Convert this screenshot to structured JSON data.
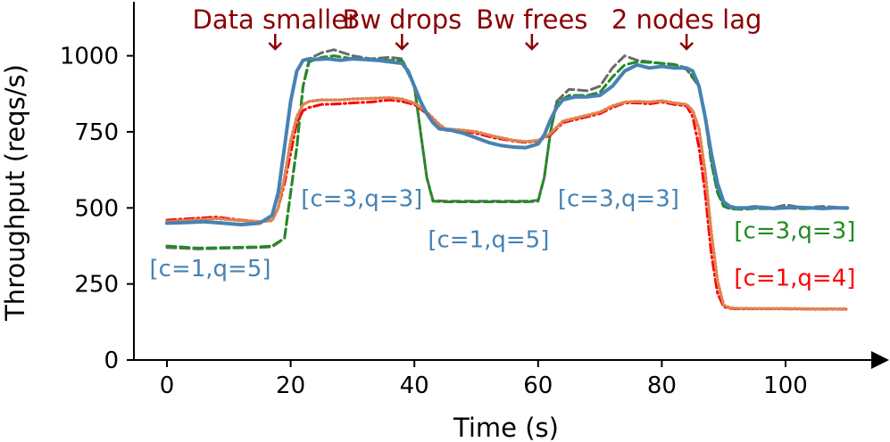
{
  "chart_data": {
    "type": "line",
    "xlabel": "Time (s)",
    "ylabel": "Throughput (reqs/s)",
    "xlim": [
      -6,
      116
    ],
    "ylim": [
      0,
      1175
    ],
    "xticks": [
      "0",
      "20",
      "40",
      "60",
      "80",
      "100"
    ],
    "xtick_values": [
      0,
      20,
      40,
      60,
      80,
      100
    ],
    "yticks": [
      "0",
      "250",
      "500",
      "750",
      "1000"
    ],
    "ytick_values": [
      0,
      250,
      500,
      750,
      1000
    ],
    "events": [
      {
        "label": "Data smaller",
        "x": 17.5
      },
      {
        "label": "Bw drops",
        "x": 38
      },
      {
        "label": "Bw frees",
        "x": 59
      },
      {
        "label": "2 nodes lag",
        "x": 84
      }
    ],
    "config_labels": [
      {
        "text": "[c=1,q=5]",
        "x": 7,
        "y": 275,
        "color": "#4682b4"
      },
      {
        "text": "[c=3,q=3]",
        "x": 31.5,
        "y": 505,
        "color": "#4682b4"
      },
      {
        "text": "[c=1,q=5]",
        "x": 52,
        "y": 370,
        "color": "#4682b4"
      },
      {
        "text": "[c=3,q=3]",
        "x": 73,
        "y": 505,
        "color": "#4682b4"
      },
      {
        "text": "[c=3,q=3]",
        "x": 101.5,
        "y": 400,
        "color": "#228b22"
      },
      {
        "text": "[c=1,q=4]",
        "x": 101.5,
        "y": 245,
        "color": "#ff0000"
      }
    ],
    "series": [
      {
        "style": "dashed-gray",
        "color": "#696969",
        "x": [
          0,
          5,
          10,
          15,
          17,
          19,
          21,
          22,
          23,
          25,
          27,
          30,
          33,
          36,
          38,
          40,
          41,
          42,
          43,
          45,
          50,
          55,
          58,
          60,
          61,
          62,
          63,
          65,
          68,
          70,
          72,
          74,
          76,
          78,
          80,
          82,
          84,
          86,
          87,
          88,
          89,
          90,
          91,
          93,
          95,
          98,
          100,
          103,
          106,
          110
        ],
        "y": [
          370,
          365,
          368,
          370,
          372,
          400,
          700,
          900,
          990,
          1010,
          1020,
          1000,
          990,
          995,
          990,
          900,
          750,
          600,
          525,
          522,
          522,
          522,
          522,
          525,
          600,
          750,
          850,
          890,
          885,
          900,
          960,
          1000,
          985,
          980,
          975,
          970,
          955,
          900,
          800,
          650,
          550,
          510,
          500,
          500,
          505,
          500,
          510,
          500,
          505,
          500
        ]
      },
      {
        "style": "dashed-green",
        "color": "#228b22",
        "x": [
          0,
          5,
          10,
          15,
          17,
          19,
          21,
          22,
          23,
          25,
          27,
          30,
          33,
          36,
          38,
          40,
          41,
          42,
          43,
          45,
          50,
          55,
          58,
          60,
          61,
          62,
          63,
          65,
          68,
          70,
          72,
          74,
          76,
          78,
          80,
          82,
          84,
          86,
          87,
          88,
          89,
          90,
          91,
          93,
          95,
          98,
          100,
          103,
          106,
          110
        ],
        "y": [
          375,
          368,
          370,
          372,
          375,
          400,
          700,
          900,
          980,
          995,
          1000,
          990,
          988,
          985,
          985,
          900,
          750,
          600,
          522,
          520,
          520,
          520,
          520,
          522,
          600,
          750,
          845,
          870,
          870,
          880,
          930,
          970,
          980,
          978,
          975,
          972,
          960,
          900,
          800,
          650,
          550,
          505,
          497,
          495,
          498,
          497,
          500,
          497,
          500,
          498
        ]
      },
      {
        "style": "dashdot-red",
        "color": "#ff0000",
        "x": [
          0,
          4,
          8,
          12,
          15,
          17,
          18,
          19,
          20,
          21,
          22,
          23,
          25,
          28,
          30,
          33,
          36,
          38,
          40,
          42,
          44,
          45,
          48,
          50,
          53,
          56,
          58,
          60,
          62,
          64,
          66,
          68,
          70,
          72,
          74,
          76,
          78,
          80,
          82,
          84,
          85,
          86,
          87,
          88,
          89,
          90,
          91,
          92,
          95,
          100,
          105,
          110
        ],
        "y": [
          460,
          465,
          470,
          460,
          455,
          460,
          500,
          580,
          680,
          780,
          820,
          830,
          840,
          842,
          845,
          848,
          855,
          850,
          840,
          810,
          770,
          755,
          752,
          745,
          730,
          720,
          715,
          720,
          740,
          780,
          790,
          800,
          810,
          830,
          845,
          845,
          842,
          848,
          840,
          835,
          800,
          700,
          550,
          350,
          220,
          175,
          170,
          168,
          168,
          168,
          167,
          167
        ]
      },
      {
        "style": "dotted-orange",
        "color": "#dd8452",
        "x": [
          0,
          4,
          8,
          12,
          15,
          17,
          18,
          19,
          20,
          21,
          22,
          23,
          25,
          28,
          30,
          33,
          36,
          38,
          40,
          42,
          44,
          45,
          48,
          50,
          53,
          56,
          58,
          60,
          62,
          64,
          66,
          68,
          70,
          72,
          74,
          76,
          78,
          80,
          82,
          84,
          85,
          86,
          87,
          88,
          89,
          90,
          91,
          92,
          95,
          100,
          105,
          110
        ],
        "y": [
          455,
          460,
          465,
          458,
          455,
          458,
          500,
          600,
          720,
          800,
          840,
          850,
          855,
          855,
          858,
          860,
          862,
          858,
          845,
          815,
          775,
          760,
          755,
          750,
          735,
          722,
          718,
          722,
          745,
          785,
          795,
          805,
          815,
          835,
          848,
          850,
          848,
          852,
          845,
          840,
          820,
          760,
          620,
          420,
          260,
          180,
          172,
          170,
          169,
          169,
          168,
          168
        ]
      },
      {
        "style": "solid-blue",
        "color": "#4682b4",
        "x": [
          0,
          3,
          6,
          9,
          12,
          15,
          17,
          18,
          19,
          20,
          21,
          22,
          23,
          24,
          26,
          28,
          30,
          32,
          34,
          36,
          38,
          39,
          40,
          41,
          42,
          43,
          44,
          46,
          48,
          50,
          52,
          54,
          56,
          58,
          60,
          61,
          62,
          63,
          64,
          66,
          68,
          70,
          72,
          74,
          76,
          78,
          80,
          82,
          84,
          85,
          86,
          87,
          88,
          89,
          90,
          91,
          92,
          94,
          96,
          98,
          100,
          102,
          104,
          106,
          108,
          110
        ],
        "y": [
          450,
          452,
          455,
          450,
          445,
          450,
          475,
          550,
          700,
          850,
          950,
          985,
          990,
          988,
          990,
          985,
          990,
          988,
          985,
          980,
          975,
          950,
          900,
          850,
          810,
          780,
          760,
          755,
          745,
          730,
          715,
          705,
          700,
          698,
          710,
          740,
          790,
          830,
          855,
          865,
          865,
          870,
          900,
          950,
          970,
          960,
          965,
          960,
          960,
          950,
          900,
          800,
          680,
          580,
          520,
          505,
          500,
          500,
          502,
          498,
          500,
          502,
          500,
          498,
          500,
          500
        ]
      }
    ]
  }
}
